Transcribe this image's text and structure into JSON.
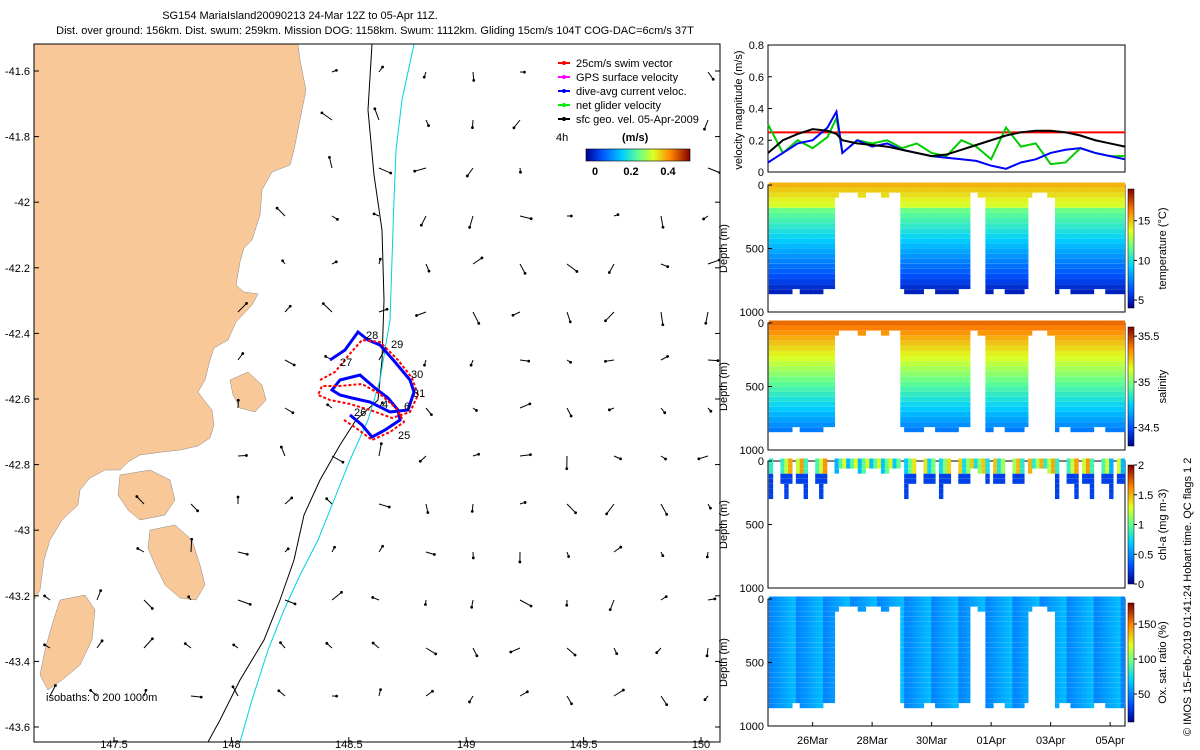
{
  "header": {
    "line1": "SG154 MariaIsland20090213 24-Mar 12Z to 05-Apr 11Z.",
    "line2": "Dist. over ground: 156km. Dist. swum: 259km. Mission DOG: 1158km. Swum: 1112km. Gliding 15cm/s 104T COG-DAC=6cm/s 37T"
  },
  "map": {
    "lon_ticks": [
      "147.5",
      "148",
      "148.5",
      "149",
      "149.5",
      "150"
    ],
    "lat_ticks": [
      "-41.6",
      "-41.8",
      "-42",
      "-42.2",
      "-42.4",
      "-42.6",
      "-42.8",
      "-43",
      "-43.2",
      "-43.4",
      "-43.6"
    ],
    "isobaths_label": "isobaths: 0   200  1000m",
    "legend": [
      {
        "label": "25cm/s swim vector",
        "color": "#ff0000"
      },
      {
        "label": "GPS surface velocity",
        "color": "#ff00ff"
      },
      {
        "label": "dive-avg current veloc.",
        "color": "#0000ff"
      },
      {
        "label": "net glider velocity",
        "color": "#00ee00"
      },
      {
        "label": "sfc geo. vel. 05-Apr-2009",
        "color": "#000000"
      }
    ],
    "legend_4h": "4h",
    "colorbar_title": "(m/s)",
    "colorbar_ticks": [
      "0",
      "0.2",
      "0.4"
    ],
    "day_labels": [
      "25",
      "26",
      "27",
      "28",
      "29",
      "30",
      "31",
      "1",
      "4",
      "6"
    ],
    "colors": {
      "land": "#f8c898",
      "isobath200": "#000000",
      "isobath1000": "#00d0e0"
    }
  },
  "chart_data": [
    {
      "type": "line",
      "ylabel": "velocity magnitude (m/s)",
      "ylim": [
        0,
        0.8
      ],
      "yticks": [
        "0",
        "0.2",
        "0.4",
        "0.6",
        "0.8"
      ],
      "x_days": [
        0,
        0.5,
        1,
        1.5,
        2,
        2.3,
        2.5,
        3,
        3.5,
        4,
        4.5,
        5,
        5.5,
        6,
        6.5,
        7,
        7.5,
        8,
        8.5,
        9,
        9.5,
        10,
        10.5,
        11,
        11.5,
        12
      ],
      "series": [
        {
          "name": "25cm/s swim vector",
          "color": "#ff0000",
          "values": [
            0.25,
            0.25,
            0.25,
            0.25,
            0.25,
            0.25,
            0.25,
            0.25,
            0.25,
            0.25,
            0.25,
            0.25,
            0.25,
            0.25,
            0.25,
            0.25,
            0.25,
            0.25,
            0.25,
            0.25,
            0.25,
            0.25,
            0.25,
            0.25,
            0.25,
            0.25
          ]
        },
        {
          "name": "net glider velocity",
          "color": "#00cc00",
          "values": [
            0.3,
            0.12,
            0.2,
            0.15,
            0.22,
            0.34,
            0.12,
            0.2,
            0.18,
            0.2,
            0.15,
            0.18,
            0.12,
            0.1,
            0.2,
            0.16,
            0.08,
            0.28,
            0.16,
            0.18,
            0.05,
            0.06,
            0.15,
            0.12,
            0.1,
            0.1
          ]
        },
        {
          "name": "dive-avg current veloc.",
          "color": "#0000ff",
          "values": [
            0.06,
            0.12,
            0.18,
            0.2,
            0.28,
            0.38,
            0.12,
            0.2,
            0.16,
            0.18,
            0.14,
            0.12,
            0.1,
            0.09,
            0.08,
            0.07,
            0.04,
            0.02,
            0.06,
            0.08,
            0.12,
            0.14,
            0.15,
            0.12,
            0.1,
            0.08
          ]
        },
        {
          "name": "sfc geo. vel.",
          "color": "#000000",
          "values": [
            0.12,
            0.2,
            0.24,
            0.27,
            0.26,
            0.24,
            0.2,
            0.18,
            0.17,
            0.16,
            0.14,
            0.12,
            0.1,
            0.11,
            0.14,
            0.17,
            0.2,
            0.23,
            0.25,
            0.26,
            0.26,
            0.25,
            0.23,
            0.2,
            0.18,
            0.16
          ]
        }
      ]
    },
    {
      "type": "scatter",
      "variable": "temperature",
      "ylabel": "Depth (m)",
      "ylim": [
        1000,
        0
      ],
      "yticks": [
        "0",
        "500",
        "1000"
      ],
      "cbar_label": "temperature (°C)",
      "cbar_ticks": [
        "5",
        "10",
        "15"
      ],
      "clim": [
        4,
        19
      ]
    },
    {
      "type": "scatter",
      "variable": "salinity",
      "ylabel": "Depth (m)",
      "ylim": [
        1000,
        0
      ],
      "yticks": [
        "0",
        "500",
        "1000"
      ],
      "cbar_label": "salinity",
      "cbar_ticks": [
        "34.5",
        "35",
        "35.5"
      ],
      "clim": [
        34.3,
        35.6
      ]
    },
    {
      "type": "scatter",
      "variable": "chl-a",
      "ylabel": "Depth (m)",
      "ylim": [
        1000,
        0
      ],
      "yticks": [
        "0",
        "500",
        "1000"
      ],
      "cbar_label": "chl-a (mg m-3)",
      "cbar_ticks": [
        "0",
        "0.5",
        "1",
        "1.5",
        "2"
      ],
      "clim": [
        0,
        2
      ]
    },
    {
      "type": "scatter",
      "variable": "oxygen",
      "ylabel": "Depth (m)",
      "ylim": [
        1000,
        0
      ],
      "yticks": [
        "0",
        "500",
        "1000"
      ],
      "cbar_label": "Ox. sat. ratio (%)",
      "cbar_ticks": [
        "50",
        "100",
        "150"
      ],
      "clim": [
        10,
        180
      ]
    }
  ],
  "time_axis": {
    "labels": [
      "26Mar",
      "28Mar",
      "30Mar",
      "01Apr",
      "03Apr",
      "05Apr"
    ],
    "label_days": [
      1.5,
      3.5,
      5.5,
      7.5,
      9.5,
      11.5
    ],
    "range_days": [
      0,
      12
    ]
  },
  "footer": "© IMOS 15-Feb-2019 01:41:24 Hobart time. QC flags 1  2"
}
